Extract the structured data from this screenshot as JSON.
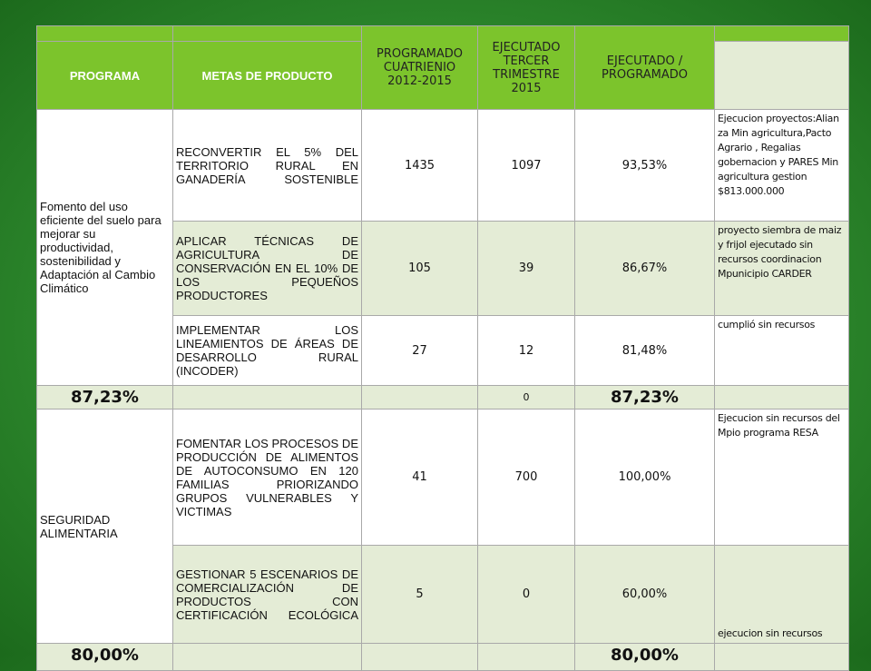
{
  "table": {
    "header": [
      "PROGRAMA",
      "METAS DE PRODUCTO",
      "PROGRAMADO CUATRIENIO 2012-2015",
      "EJECUTADO TERCER TRIMESTRE 2015",
      "EJECUTADO / PROGRAMADO"
    ],
    "groups": [
      {
        "programa": "Fomento del uso eficiente del suelo para mejorar su productividad, sostenibilidad y Adaptación al Cambio Climático",
        "metas": [
          {
            "meta": "RECONVERTIR EL 5% DEL TERRITORIO RURAL EN GANADERÍA SOSTENIBLE",
            "programado": 1435,
            "ejecutado": 1097,
            "porcentaje": "93,53%",
            "observacion": "Ejecucion proyectos:Alian za Min agricultura,Pacto Agrario , Regalias gobernacion y PARES Min agricultura gestion $813.000.000"
          },
          {
            "meta": "APLICAR TÉCNICAS DE AGRICULTURA DE CONSERVACIÓN EN EL 10% DE LOS PEQUEÑOS PRODUCTORES",
            "programado": 105,
            "ejecutado": 39,
            "porcentaje": "86,67%",
            "observacion": "proyecto siembra de maiz y frijol ejecutado sin recursos coordinacion Mpunicipio CARDER"
          },
          {
            "meta": "IMPLEMENTAR LOS LINEAMIENTOS DE ÁREAS DE DESARROLLO RURAL (INCODER)",
            "programado": 27,
            "ejecutado": 12,
            "porcentaje": "81,48%",
            "observacion": "cumplió sin recursos"
          }
        ],
        "total": {
          "promedio": "87,23%",
          "ejecutado": 0,
          "porcentaje": "87,23%"
        }
      },
      {
        "programa": "SEGURIDAD ALIMENTARIA",
        "metas": [
          {
            "meta": "FOMENTAR LOS PROCESOS DE PRODUCCIÓN DE ALIMENTOS DE AUTOCONSUMO EN 120 FAMILIAS PRIORIZANDO GRUPOS VULNERABLES Y VICTIMAS",
            "programado": 41,
            "ejecutado": 700,
            "porcentaje": "100,00%",
            "observacion": "Ejecucion sin recursos del Mpio programa RESA"
          },
          {
            "meta": "GESTIONAR 5 ESCENARIOS DE COMERCIALIZACIÓN DE PRODUCTOS CON CERTIFICACIÓN ECOLÓGICA",
            "programado": 5,
            "ejecutado": 0,
            "porcentaje": "60,00%",
            "observacion": "ejecucion sin recursos"
          }
        ],
        "total": {
          "promedio": "80,00%",
          "porcentaje": "80,00%"
        }
      }
    ]
  }
}
